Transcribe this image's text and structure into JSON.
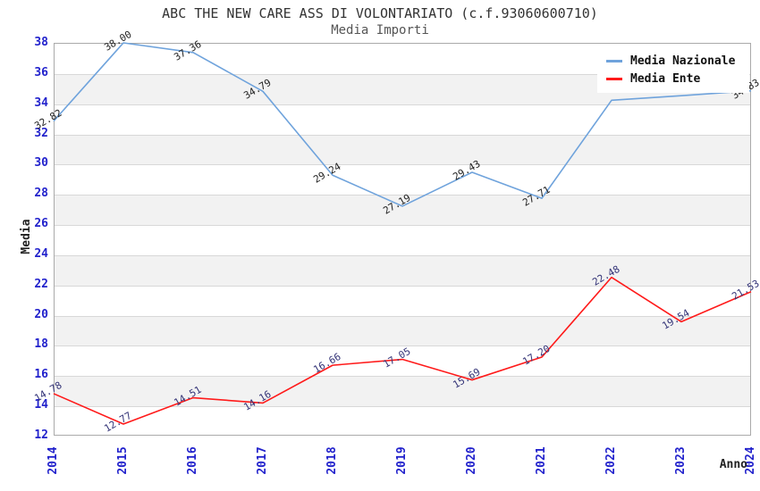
{
  "header": {
    "title": "ABC THE NEW CARE ASS DI VOLONTARIATO (c.f.93060600710)",
    "subtitle": "Media Importi"
  },
  "axes": {
    "y_label": "Media",
    "x_label": "Anno",
    "y_ticks": [
      38,
      36,
      34,
      32,
      30,
      28,
      26,
      24,
      22,
      20,
      18,
      16,
      14,
      12
    ],
    "x_ticks": [
      "2014",
      "2015",
      "2016",
      "2017",
      "2018",
      "2019",
      "2020",
      "2021",
      "2022",
      "2023",
      "2024"
    ],
    "tick_color": "#2222cc"
  },
  "legend": {
    "items": [
      {
        "label": "Media Nazionale",
        "color": "#6fa3dc"
      },
      {
        "label": "Media Ente",
        "color": "#ff1a1a"
      }
    ]
  },
  "colors": {
    "background": "#ffffff",
    "band_gray": "#f2f2f2",
    "gridline": "#d8d8d8",
    "plot_border": "#aaaaaa",
    "title_text": "#333333",
    "subtitle_text": "#555555",
    "axis_tick_text": "#2222cc"
  },
  "chart_data": {
    "type": "line",
    "title": "ABC THE NEW CARE ASS DI VOLONTARIATO (c.f.93060600710)",
    "subtitle": "Media Importi",
    "xlabel": "Anno",
    "ylabel": "Media",
    "ylim": [
      12,
      38
    ],
    "grid": "horizontal-only",
    "legend_position": "top-right-inside",
    "x": [
      "2014",
      "2015",
      "2016",
      "2017",
      "2018",
      "2019",
      "2020",
      "2021",
      "2022",
      "2023",
      "2024"
    ],
    "series": [
      {
        "name": "Media Nazionale",
        "color": "#6fa3dc",
        "label_color": "#222222",
        "values": [
          32.82,
          38.0,
          37.36,
          34.79,
          29.24,
          27.19,
          29.43,
          27.71,
          34.2,
          34.5,
          34.83
        ],
        "point_labels": [
          "32.82",
          "38.00",
          "37.36",
          "34.79",
          "29.24",
          "27.19",
          "29.43",
          "27.71",
          "",
          "",
          "34.83"
        ]
      },
      {
        "name": "Media Ente",
        "color": "#ff1a1a",
        "label_color": "#333377",
        "values": [
          14.78,
          12.77,
          14.51,
          14.16,
          16.66,
          17.05,
          15.69,
          17.2,
          22.48,
          19.54,
          21.53
        ],
        "point_labels": [
          "14.78",
          "12.77",
          "14.51",
          "14.16",
          "16.66",
          "17.05",
          "15.69",
          "17.20",
          "22.48",
          "19.54",
          "21.53"
        ]
      }
    ],
    "note": "2022 and 2023 Media Nazionale point labels are covered by the legend box; those two values are estimated from line position"
  }
}
